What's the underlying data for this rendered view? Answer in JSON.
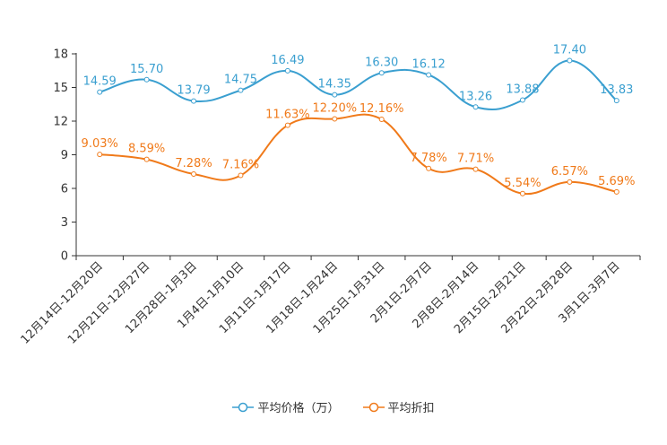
{
  "chart_data": {
    "type": "line",
    "categories": [
      "12月14日-12月20日",
      "12月21日-12月27日",
      "12月28日-1月3日",
      "1月4日-1月10日",
      "1月11日-1月17日",
      "1月18日-1月24日",
      "1月25日-1月31日",
      "2月1日-2月7日",
      "2月8日-2月14日",
      "2月15日-2月21日",
      "2月22日-2月28日",
      "3月1日-3月7日"
    ],
    "series": [
      {
        "name": "平均价格（万）",
        "color": "#3a9fd0",
        "values": [
          14.59,
          15.7,
          13.79,
          14.75,
          16.49,
          14.35,
          16.3,
          16.12,
          13.26,
          13.88,
          17.4,
          13.83
        ],
        "labels": [
          "14.59",
          "15.70",
          "13.79",
          "14.75",
          "16.49",
          "14.35",
          "16.30",
          "16.12",
          "13.26",
          "13.88",
          "17.40",
          "13.83"
        ]
      },
      {
        "name": "平均折扣",
        "color": "#f07a1a",
        "values": [
          9.03,
          8.59,
          7.28,
          7.16,
          11.63,
          12.2,
          12.16,
          7.78,
          7.71,
          5.54,
          6.57,
          5.69
        ],
        "labels": [
          "9.03%",
          "8.59%",
          "7.28%",
          "7.16%",
          "11.63%",
          "12.20%",
          "12.16%",
          "7.78%",
          "7.71%",
          "5.54%",
          "6.57%",
          "5.69%"
        ]
      }
    ],
    "y_ticks": [
      "0",
      "3",
      "6",
      "9",
      "12",
      "15",
      "18"
    ],
    "ylim": [
      0,
      18
    ],
    "title": "",
    "xlabel": "",
    "ylabel": "",
    "legend_position": "bottom"
  }
}
